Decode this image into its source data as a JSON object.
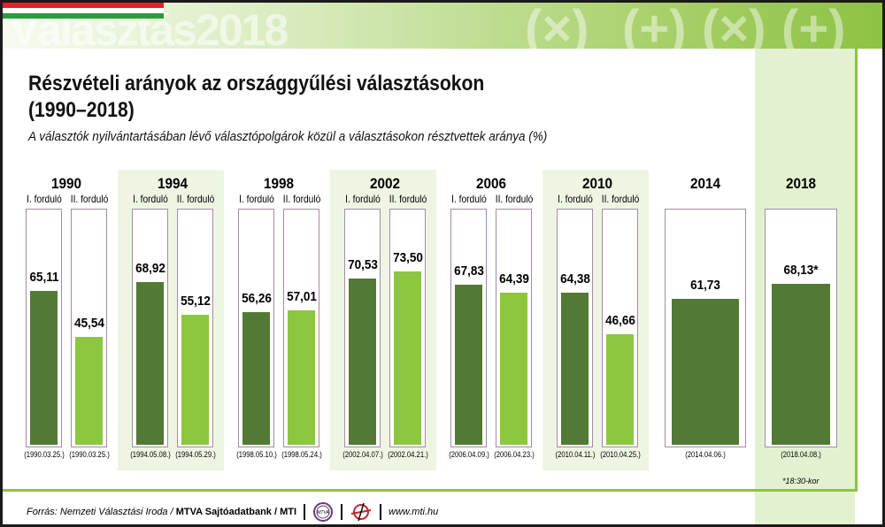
{
  "header": {
    "watermark_word": "Választás",
    "watermark_year": "2018",
    "symbols": [
      "(×)",
      "(+)",
      "(×)",
      "(+)"
    ]
  },
  "colors": {
    "round1": "#527a35",
    "round2": "#8dc63f",
    "accent": "#8dc243",
    "box_border": "#a68aa8"
  },
  "footnote": "*18:30-kor",
  "footer": {
    "source_prefix": "Forrás: Nemzeti Választási Iroda / ",
    "source_bold": "MTVA Sajtóadatbank / MTI",
    "logo1": "MTVA",
    "url": "www.mti.hu"
  },
  "chart_data": {
    "type": "bar",
    "title": "Részvételi arányok az országgyűlési választásokon",
    "title_line2": "(1990–2018)",
    "subtitle": "A választók nyilvántartásában lévő választópolgárok közül a választásokon résztvettek aránya (%)",
    "round_labels": [
      "I. forduló",
      "II. forduló"
    ],
    "ylim": [
      0,
      100
    ],
    "groups": [
      {
        "year": "1990",
        "values": [
          65.11,
          45.54
        ],
        "labels": [
          "65,11",
          "45,54"
        ],
        "dates": [
          "(1990.03.25.)",
          "(1990.03.25.)"
        ]
      },
      {
        "year": "1994",
        "values": [
          68.92,
          55.12
        ],
        "labels": [
          "68,92",
          "55,12"
        ],
        "dates": [
          "(1994.05.08.)",
          "(1994.05.29.)"
        ]
      },
      {
        "year": "1998",
        "values": [
          56.26,
          57.01
        ],
        "labels": [
          "56,26",
          "57,01"
        ],
        "dates": [
          "(1998.05.10.)",
          "(1998.05.24.)"
        ]
      },
      {
        "year": "2002",
        "values": [
          70.53,
          73.5
        ],
        "labels": [
          "70,53",
          "73,50"
        ],
        "dates": [
          "(2002.04.07.)",
          "(2002.04.21.)"
        ]
      },
      {
        "year": "2006",
        "values": [
          67.83,
          64.39
        ],
        "labels": [
          "67,83",
          "64,39"
        ],
        "dates": [
          "(2006.04.09.)",
          "(2006.04.23.)"
        ]
      },
      {
        "year": "2010",
        "values": [
          64.38,
          46.66
        ],
        "labels": [
          "64,38",
          "46,66"
        ],
        "dates": [
          "(2010.04.11.)",
          "(2010.04.25.)"
        ]
      },
      {
        "year": "2014",
        "values": [
          61.73
        ],
        "labels": [
          "61,73"
        ],
        "dates": [
          "(2014.04.06.)"
        ]
      },
      {
        "year": "2018",
        "values": [
          68.13
        ],
        "labels": [
          "68,13*"
        ],
        "dates": [
          "(2018.04.08.)"
        ]
      }
    ]
  }
}
